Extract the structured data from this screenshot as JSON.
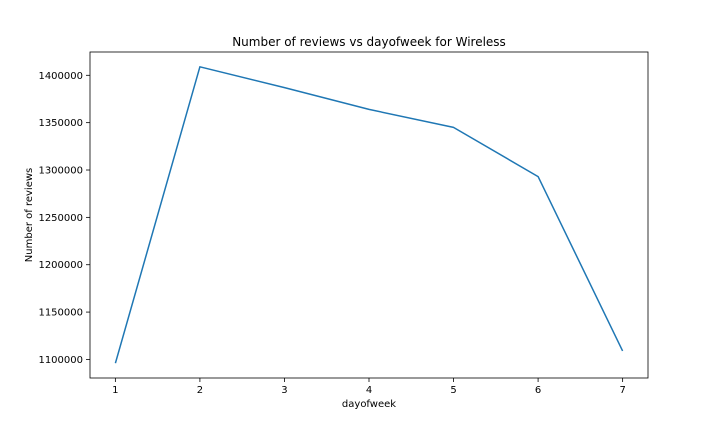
{
  "chart_data": {
    "type": "line",
    "title": "Number of reviews vs dayofweek for Wireless",
    "xlabel": "dayofweek",
    "ylabel": "Number of reviews",
    "x": [
      1,
      2,
      3,
      4,
      5,
      6,
      7
    ],
    "series": [
      {
        "values": [
          1096000,
          1409000,
          1387000,
          1364000,
          1345000,
          1293000,
          1109000
        ],
        "color": "#1f77b4"
      }
    ],
    "xticks": [
      1,
      2,
      3,
      4,
      5,
      6,
      7
    ],
    "xtick_labels": [
      "1",
      "2",
      "3",
      "4",
      "5",
      "6",
      "7"
    ],
    "yticks": [
      1100000,
      1150000,
      1200000,
      1250000,
      1300000,
      1350000,
      1400000
    ],
    "ytick_labels": [
      "1100000",
      "1150000",
      "1200000",
      "1250000",
      "1300000",
      "1350000",
      "1400000"
    ],
    "xlim": [
      0.7,
      7.3
    ],
    "ylim": [
      1080400,
      1424600
    ],
    "grid": false,
    "legend": "none"
  }
}
